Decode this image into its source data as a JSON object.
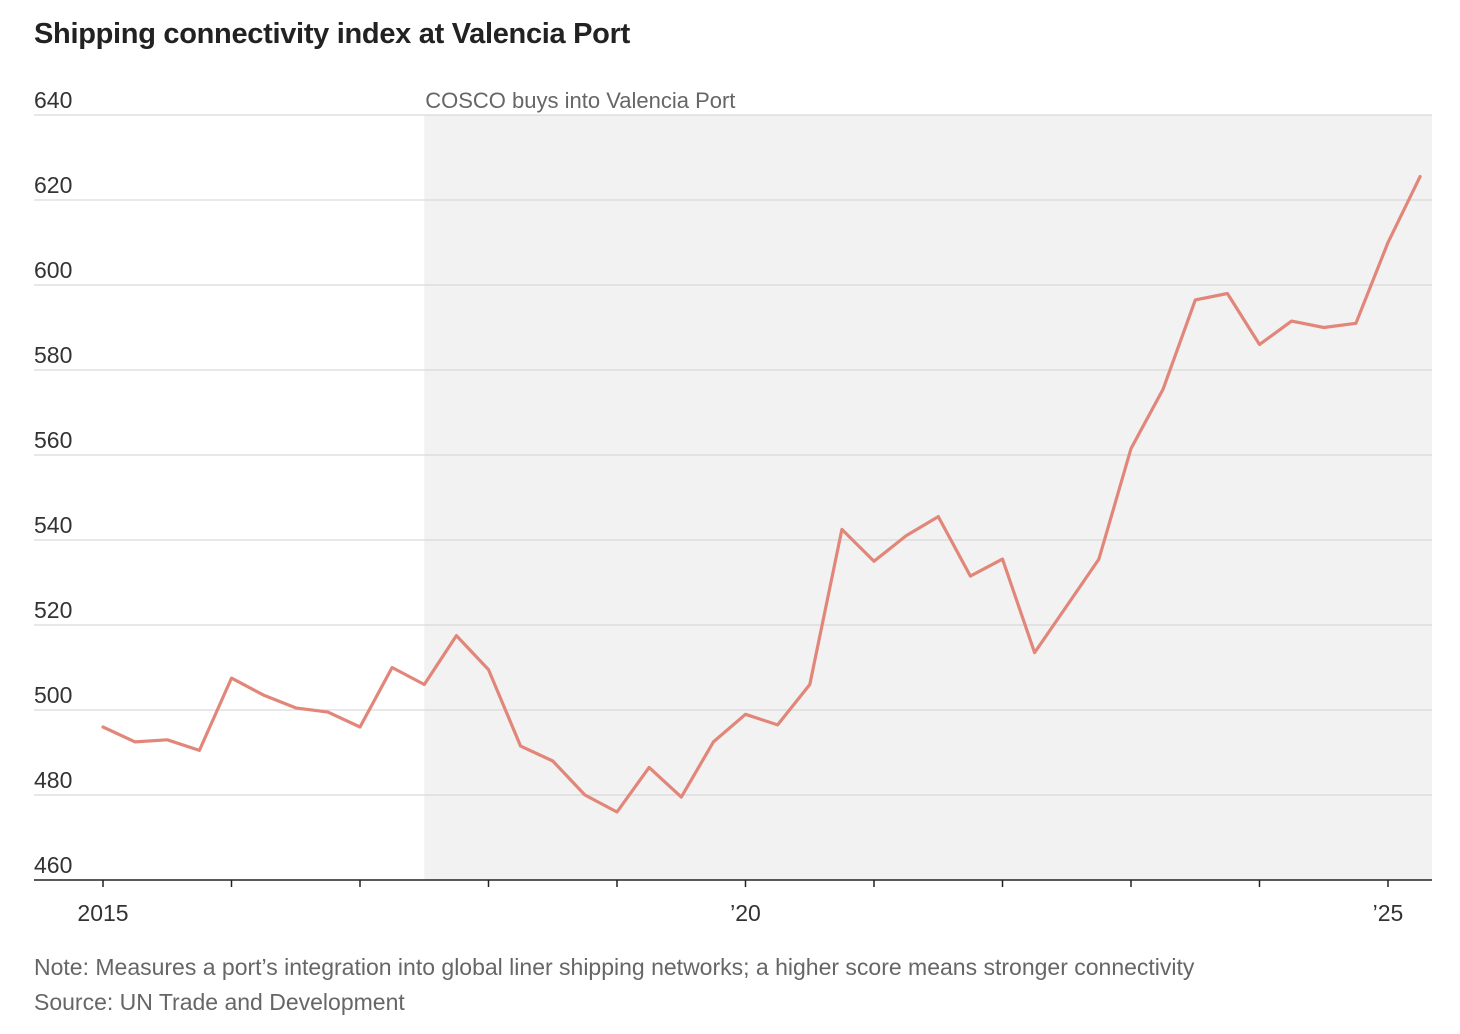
{
  "chart_data": {
    "type": "line",
    "title": "Shipping connectivity index at Valencia Port",
    "xlabel": "",
    "ylabel": "",
    "ylim": [
      460,
      640
    ],
    "yticks": [
      460,
      480,
      500,
      520,
      540,
      560,
      580,
      600,
      620,
      640
    ],
    "xlim": [
      2015.0,
      2025.375
    ],
    "xticks": [
      {
        "value": 2015,
        "label": "2015"
      },
      {
        "value": 2016,
        "label": ""
      },
      {
        "value": 2017,
        "label": ""
      },
      {
        "value": 2018,
        "label": ""
      },
      {
        "value": 2019,
        "label": ""
      },
      {
        "value": 2020,
        "label": "’20"
      },
      {
        "value": 2021,
        "label": ""
      },
      {
        "value": 2022,
        "label": ""
      },
      {
        "value": 2023,
        "label": ""
      },
      {
        "value": 2024,
        "label": ""
      },
      {
        "value": 2025,
        "label": "’25"
      }
    ],
    "grid": true,
    "shaded_region": {
      "from": 2017.5,
      "to": 2025.375,
      "label": "COSCO buys into Valencia Port"
    },
    "series": [
      {
        "name": "Valencia Port",
        "color": "#e2867a",
        "x": [
          2015.0,
          2015.25,
          2015.5,
          2015.75,
          2016.0,
          2016.25,
          2016.5,
          2016.75,
          2017.0,
          2017.25,
          2017.5,
          2017.75,
          2018.0,
          2018.25,
          2018.5,
          2018.75,
          2019.0,
          2019.25,
          2019.5,
          2019.75,
          2020.0,
          2020.25,
          2020.5,
          2020.75,
          2021.0,
          2021.25,
          2021.5,
          2021.75,
          2022.0,
          2022.25,
          2022.5,
          2022.75,
          2023.0,
          2023.25,
          2023.5,
          2023.75,
          2024.0,
          2024.25,
          2024.5,
          2024.75,
          2025.0,
          2025.25
        ],
        "values": [
          496,
          492.5,
          493,
          490.5,
          507.5,
          503.5,
          500.5,
          499.5,
          496,
          510,
          506,
          517.5,
          509.5,
          491.5,
          488,
          480,
          476,
          486.5,
          479.5,
          492.5,
          499,
          496.5,
          506,
          542.5,
          535,
          541,
          545.5,
          531.5,
          535.5,
          513.5,
          524.5,
          535.5,
          561.5,
          575.5,
          596.5,
          598,
          586,
          591.5,
          590,
          591,
          610,
          625.5
        ]
      }
    ]
  },
  "footer": {
    "note": "Note: Measures a port’s integration into global liner shipping networks; a higher score means stronger connectivity",
    "source": "Source: UN Trade and Development"
  }
}
